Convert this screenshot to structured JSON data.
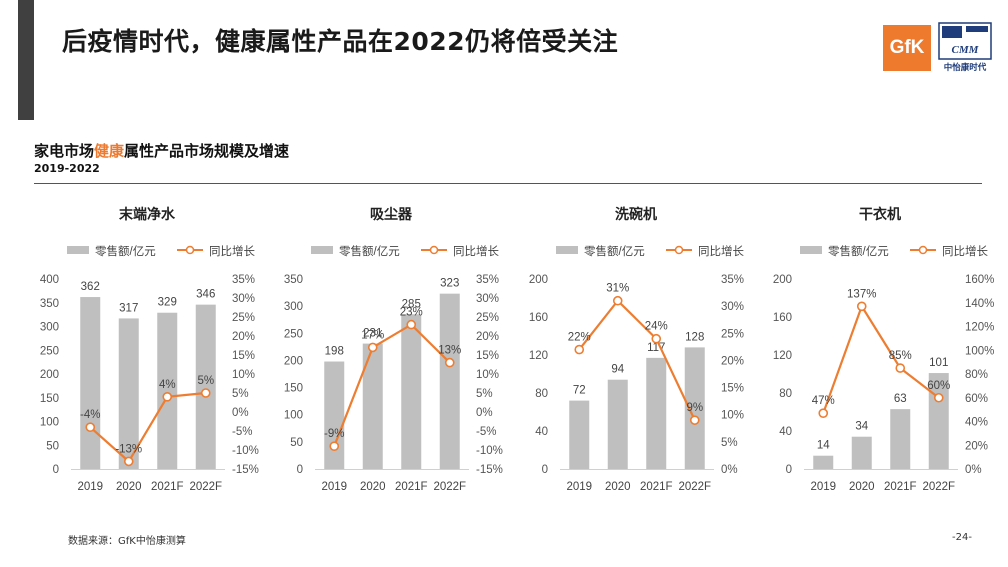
{
  "slide": {
    "title": "后疫情时代，健康属性产品在2022仍将倍受关注"
  },
  "logos": {
    "gfk": "GfK",
    "cmm_mark": "CMM",
    "cmm_name": "中怡康时代"
  },
  "section": {
    "title_prefix": "家电市场",
    "title_highlight": "健康",
    "title_suffix": "属性产品市场规模及增速",
    "subtitle": "2019-2022"
  },
  "colors": {
    "bar": "#bfbfbf",
    "line": "#ed7d31",
    "accent": "#ee7a2e"
  },
  "legend": {
    "bar_label": "零售额/亿元",
    "line_label": "同比增长"
  },
  "chart_data": [
    {
      "type": "bar",
      "title": "末端净水",
      "categories": [
        "2019",
        "2020",
        "2021F",
        "2022F"
      ],
      "series": [
        {
          "name": "零售额/亿元",
          "type": "bar",
          "axis": "left",
          "values": [
            362,
            317,
            329,
            346
          ],
          "labels": [
            "362",
            "317",
            "329",
            "346"
          ]
        },
        {
          "name": "同比增长",
          "type": "line",
          "axis": "right",
          "values": [
            -4,
            -13,
            4,
            5
          ],
          "labels": [
            "-4%",
            "-13%",
            "4%",
            "5%"
          ]
        }
      ],
      "ylim": [
        0,
        400
      ],
      "yticks": [
        0,
        50,
        100,
        150,
        200,
        250,
        300,
        350,
        400
      ],
      "y2lim": [
        -15,
        35
      ],
      "y2ticks": [
        -15,
        -10,
        -5,
        0,
        5,
        10,
        15,
        20,
        25,
        30,
        35
      ],
      "y2ticklabels": [
        "-15%",
        "-10%",
        "-5%",
        "0%",
        "5%",
        "10%",
        "15%",
        "20%",
        "25%",
        "30%",
        "35%"
      ]
    },
    {
      "type": "bar",
      "title": "吸尘器",
      "categories": [
        "2019",
        "2020",
        "2021F",
        "2022F"
      ],
      "series": [
        {
          "name": "零售额/亿元",
          "type": "bar",
          "axis": "left",
          "values": [
            198,
            231,
            285,
            323
          ],
          "labels": [
            "198",
            "231",
            "285",
            "323"
          ]
        },
        {
          "name": "同比增长",
          "type": "line",
          "axis": "right",
          "values": [
            -9,
            17,
            23,
            13
          ],
          "labels": [
            "-9%",
            "17%",
            "23%",
            "13%"
          ]
        }
      ],
      "ylim": [
        0,
        350
      ],
      "yticks": [
        0,
        50,
        100,
        150,
        200,
        250,
        300,
        350
      ],
      "y2lim": [
        -15,
        35
      ],
      "y2ticks": [
        -15,
        -10,
        -5,
        0,
        5,
        10,
        15,
        20,
        25,
        30,
        35
      ],
      "y2ticklabels": [
        "-15%",
        "-10%",
        "-5%",
        "0%",
        "5%",
        "10%",
        "15%",
        "20%",
        "25%",
        "30%",
        "35%"
      ]
    },
    {
      "type": "bar",
      "title": "洗碗机",
      "categories": [
        "2019",
        "2020",
        "2021F",
        "2022F"
      ],
      "series": [
        {
          "name": "零售额/亿元",
          "type": "bar",
          "axis": "left",
          "values": [
            72,
            94,
            117,
            128
          ],
          "labels": [
            "72",
            "94",
            "117",
            "128"
          ]
        },
        {
          "name": "同比增长",
          "type": "line",
          "axis": "right",
          "values": [
            22,
            31,
            24,
            9
          ],
          "labels": [
            "22%",
            "31%",
            "24%",
            "9%"
          ]
        }
      ],
      "ylim": [
        0,
        200
      ],
      "yticks": [
        0,
        40,
        80,
        120,
        160,
        200
      ],
      "y2lim": [
        0,
        35
      ],
      "y2ticks": [
        0,
        5,
        10,
        15,
        20,
        25,
        30,
        35
      ],
      "y2ticklabels": [
        "0%",
        "5%",
        "10%",
        "15%",
        "20%",
        "25%",
        "30%",
        "35%"
      ]
    },
    {
      "type": "bar",
      "title": "干衣机",
      "categories": [
        "2019",
        "2020",
        "2021F",
        "2022F"
      ],
      "series": [
        {
          "name": "零售额/亿元",
          "type": "bar",
          "axis": "left",
          "values": [
            14,
            34,
            63,
            101
          ],
          "labels": [
            "14",
            "34",
            "63",
            "101"
          ]
        },
        {
          "name": "同比增长",
          "type": "line",
          "axis": "right",
          "values": [
            47,
            137,
            85,
            60
          ],
          "labels": [
            "47%",
            "137%",
            "85%",
            "60%"
          ]
        }
      ],
      "ylim": [
        0,
        200
      ],
      "yticks": [
        0,
        40,
        80,
        120,
        160,
        200
      ],
      "y2lim": [
        0,
        160
      ],
      "y2ticks": [
        0,
        20,
        40,
        60,
        80,
        100,
        120,
        140,
        160
      ],
      "y2ticklabels": [
        "0%",
        "20%",
        "40%",
        "60%",
        "80%",
        "100%",
        "120%",
        "140%",
        "160%"
      ]
    }
  ],
  "footer": {
    "source": "数据来源：GfK中怡康测算",
    "page": "-24-"
  }
}
